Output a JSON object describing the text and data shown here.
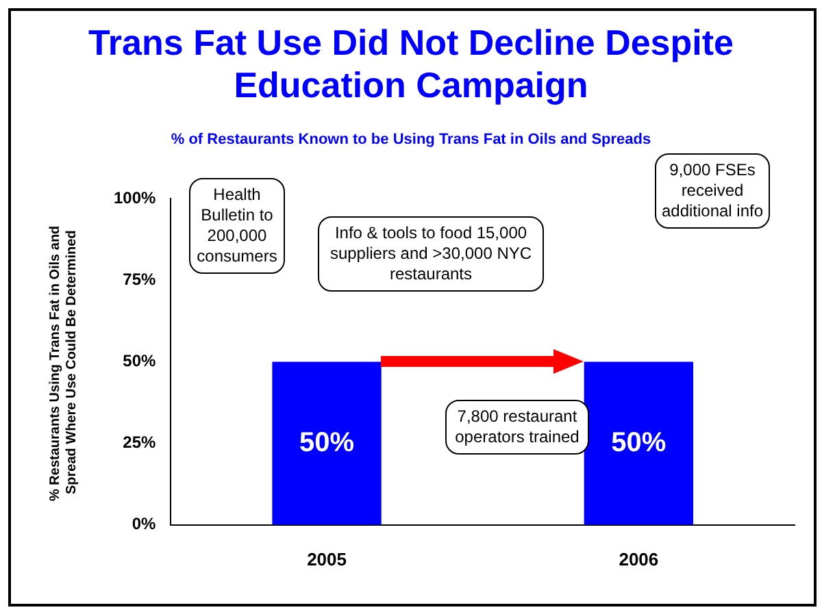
{
  "chart_data": {
    "type": "bar",
    "title": "Trans Fat Use Did Not Decline Despite Education Campaign",
    "subtitle": "% of Restaurants Known to be Using Trans Fat in Oils and Spreads",
    "ylabel": "% Restaurants Using Trans Fat in Oils and Spread Where Use Could Be Determined",
    "categories": [
      "2005",
      "2006"
    ],
    "values": [
      50,
      50
    ],
    "color": "#0000ff",
    "ylim": [
      0,
      100
    ],
    "yticks": [
      {
        "value": 0,
        "label": "0%"
      },
      {
        "value": 25,
        "label": "25%"
      },
      {
        "value": 50,
        "label": "50%"
      },
      {
        "value": 75,
        "label": "75%"
      },
      {
        "value": 100,
        "label": "100%"
      }
    ],
    "value_labels": [
      "50%",
      "50%"
    ],
    "grid": false,
    "legend": false,
    "annotations": [
      "Health Bulletin to 200,000 consumers",
      "Info & tools to food 15,000 suppliers and >30,000 NYC restaurants",
      "7,800 restaurant operators trained",
      "9,000 FSEs received additional info"
    ]
  }
}
